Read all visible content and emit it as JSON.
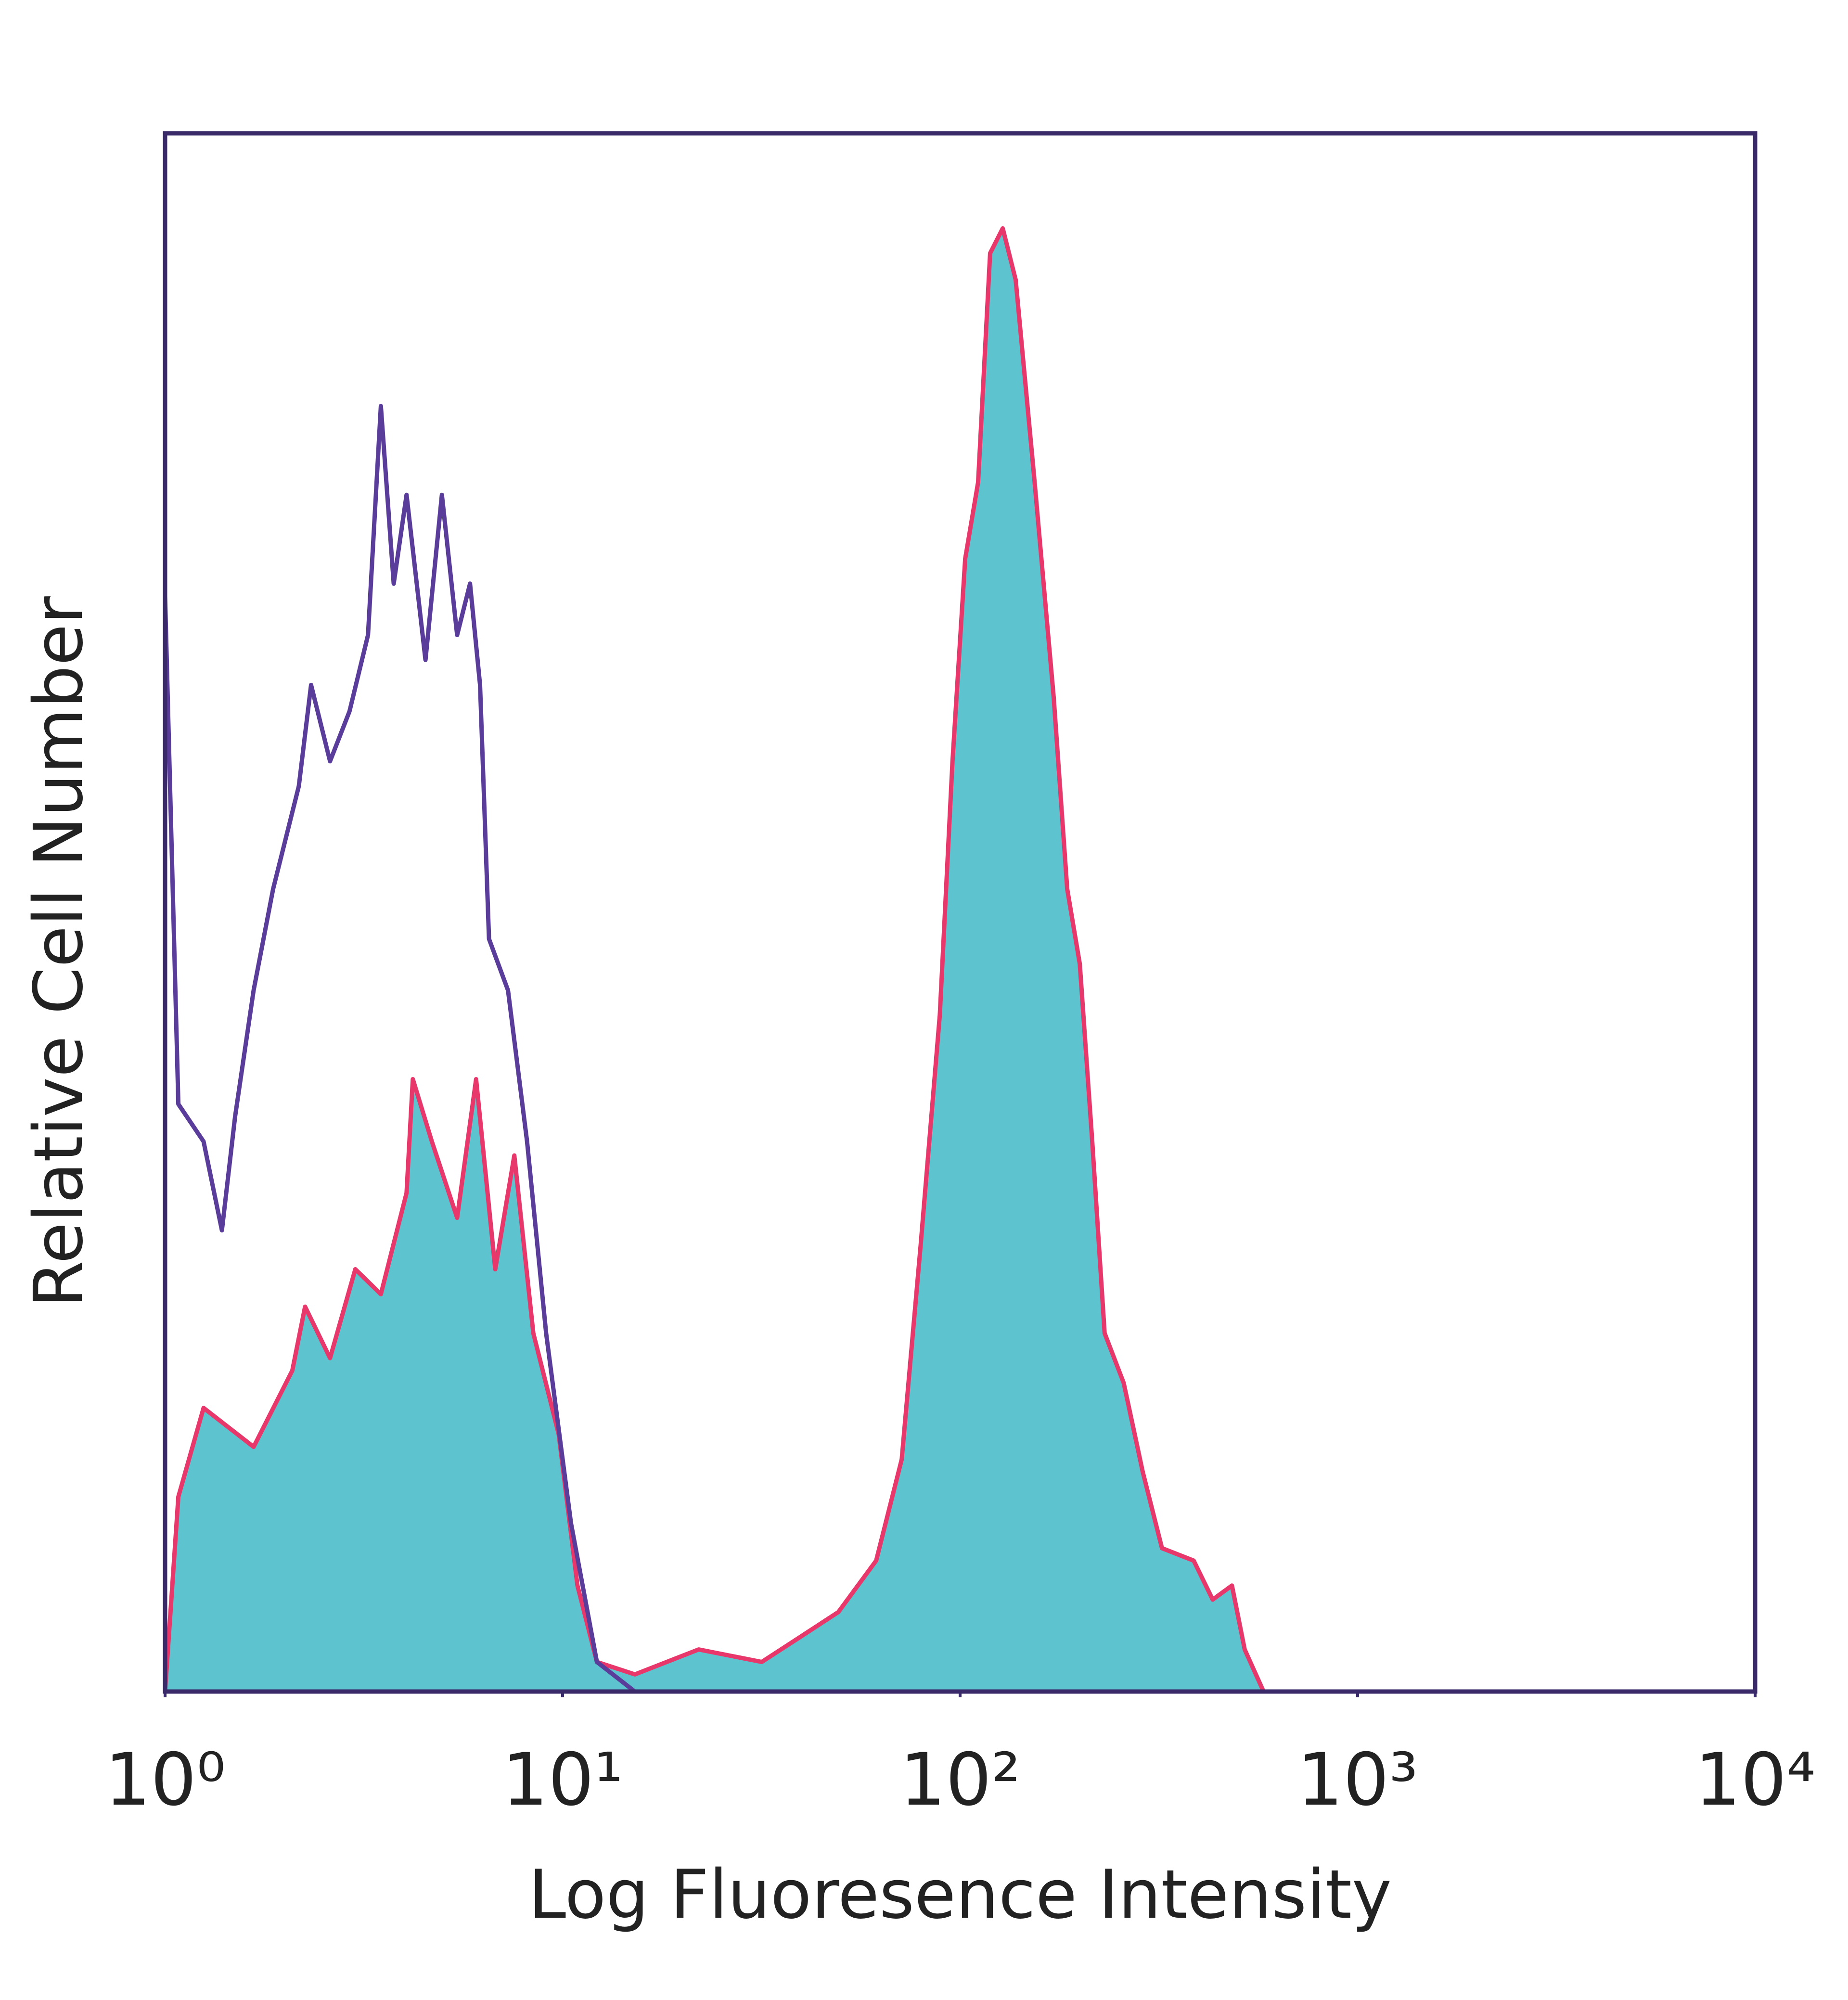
{
  "chart_data": {
    "type": "histogram-line",
    "x_label": "Log Fluoresence Intensity",
    "y_label": "Relative Cell Number",
    "xscale": "log",
    "xlim": [
      1,
      10000
    ],
    "xticks": [
      {
        "value": 1,
        "label": "10⁰"
      },
      {
        "value": 10,
        "label": "10¹"
      },
      {
        "value": 100,
        "label": "10²"
      },
      {
        "value": 1000,
        "label": "10³"
      },
      {
        "value": 10000,
        "label": "10⁴"
      }
    ],
    "ylim": [
      0,
      100
    ],
    "series": [
      {
        "color": "#e8386b",
        "fill": "#5cc3cf",
        "x": [
          1,
          1.08,
          1.25,
          1.67,
          2.09,
          2.25,
          2.6,
          3.01,
          3.49,
          4.05,
          4.2,
          4.69,
          5.43,
          6.06,
          6.77,
          7.56,
          8.44,
          9.78,
          10.9,
          12.2,
          15.2,
          22,
          31.7,
          39.6,
          49.4,
          61.5,
          71.3,
          79.6,
          88.9,
          95.7,
          103,
          111,
          119,
          128,
          138,
          154,
          172,
          186,
          200,
          215,
          231,
          258,
          288,
          322,
          387,
          432,
          483,
          520,
          580
        ],
        "values": [
          0,
          12.5,
          18.2,
          15.7,
          20.6,
          24.7,
          21.4,
          27.1,
          25.5,
          32,
          39.3,
          35.3,
          30.4,
          39.3,
          27.1,
          34.4,
          23,
          16.5,
          6.8,
          1.9,
          1.1,
          2.7,
          1.9,
          3.5,
          5.1,
          8.4,
          14.9,
          28.7,
          43.4,
          59.7,
          72.7,
          77.6,
          92.3,
          93.9,
          90.6,
          77.6,
          63.8,
          51.5,
          46.7,
          35.3,
          23,
          19.8,
          14.1,
          9.2,
          8.4,
          5.9,
          6.8,
          2.7,
          0
        ]
      },
      {
        "color": "#5a3d9a",
        "x": [
          1,
          1.08,
          1.25,
          1.39,
          1.5,
          1.67,
          1.87,
          2.17,
          2.33,
          2.6,
          2.91,
          3.24,
          3.49,
          3.76,
          4.05,
          4.52,
          4.97,
          5.43,
          5.85,
          6.2,
          6.53,
          7.29,
          8.14,
          9.09,
          10.5,
          12.2,
          15.2
        ],
        "values": [
          70.3,
          37.7,
          35.3,
          29.6,
          36.9,
          45,
          51.5,
          58.1,
          64.6,
          59.7,
          62.9,
          67.8,
          82.5,
          71.1,
          76.8,
          66.2,
          76.8,
          67.8,
          71.1,
          64.6,
          48.3,
          45,
          35.3,
          23,
          10.8,
          1.9,
          0
        ]
      }
    ]
  }
}
